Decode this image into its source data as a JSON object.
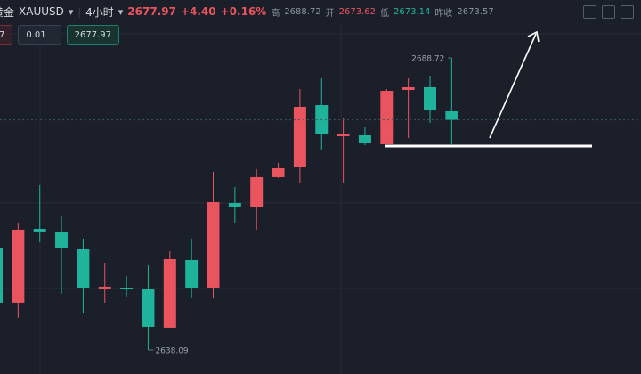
{
  "header": {
    "name": "黄金",
    "symbol": "XAUUSD",
    "interval": "4小时",
    "price": "2677.97",
    "change": "+4.40",
    "change_pct": "+0.16%",
    "high_label": "高",
    "high": "2688.72",
    "open_label": "开",
    "open": "2673.62",
    "low_label": "低",
    "low": "2673.14",
    "prev_label": "昨收",
    "prev": "2673.57"
  },
  "order_bar": {
    "left": "7",
    "lot": "0.01",
    "price": "2677.97"
  },
  "chart_data": {
    "type": "candlestick",
    "up_color": "#e9545e",
    "down_color": "#1fb39c",
    "categories": [
      null,
      null,
      null,
      null,
      null,
      null,
      null,
      null,
      null,
      null,
      null,
      null,
      null,
      null,
      null,
      null,
      null,
      null,
      null,
      null,
      null,
      null
    ],
    "open": [
      2655.84,
      2646.27,
      2659.08,
      2658.62,
      2655.53,
      2648.74,
      2648.89,
      2648.59,
      2641.95,
      2653.68,
      2648.89,
      2663.56,
      2662.79,
      2668.04,
      2669.73,
      2680.54,
      2675.14,
      2675.29,
      2673.75,
      2683.16,
      2683.63,
      2679.46
    ],
    "high": [
      2660.16,
      2660.16,
      2666.65,
      2661.24,
      2657.39,
      2653.21,
      2650.9,
      2652.75,
      2655.22,
      2657.39,
      2668.96,
      2666.34,
      2669.43,
      2670.51,
      2683.32,
      2685.17,
      2678.22,
      2676.68,
      2683.32,
      2685.17,
      2685.63,
      2688.72
    ],
    "low": [
      2645.5,
      2643.65,
      2656.77,
      2647.81,
      2644.42,
      2646.27,
      2647.35,
      2638.09,
      2641.95,
      2647.04,
      2647.04,
      2660.16,
      2658.93,
      2667.88,
      2667.11,
      2672.82,
      2667.11,
      2673.59,
      2673.59,
      2674.83,
      2677.45,
      2673.75
    ],
    "close": [
      2646.27,
      2658.93,
      2658.62,
      2655.68,
      2648.89,
      2649.05,
      2648.59,
      2642.1,
      2653.83,
      2648.89,
      2663.71,
      2662.94,
      2668.04,
      2669.58,
      2680.23,
      2675.45,
      2675.45,
      2673.9,
      2683.01,
      2683.63,
      2679.61,
      2677.97
    ],
    "ylim": [
      2633.91,
      2695.67
    ],
    "annotations": [
      2688.72,
      2638.09
    ]
  }
}
